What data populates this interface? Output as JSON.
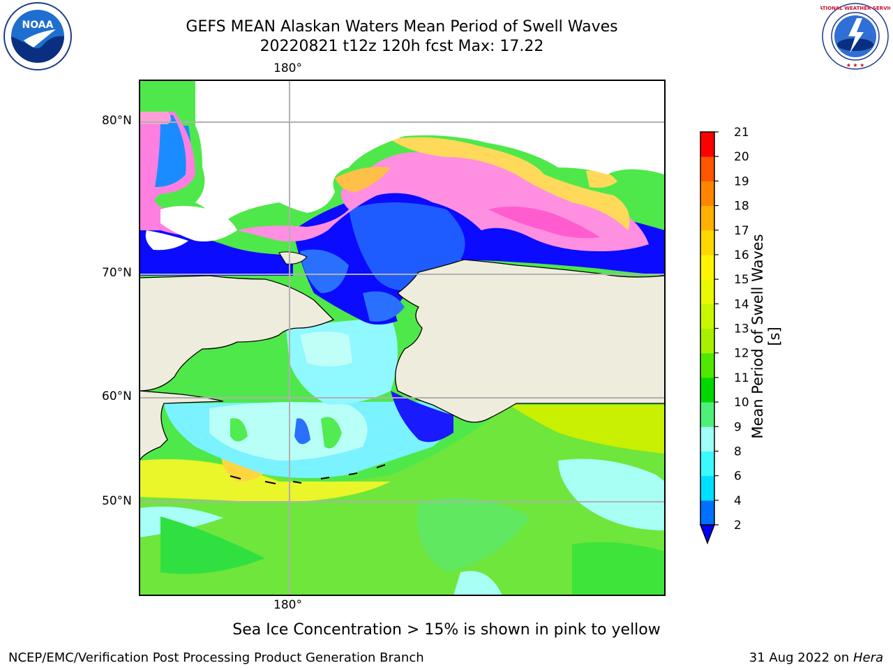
{
  "title": {
    "line1": "GEFS MEAN Alaskan Waters Mean Period of Swell Waves",
    "line2": "20220821 t12z 120h fcst   Max: 17.22"
  },
  "map": {
    "lat_labels": [
      "80°N",
      "70°N",
      "60°N",
      "50°N"
    ],
    "lon_label_top": "180°",
    "lon_label_bottom": "180°",
    "colors": {
      "land": "#eeecdc",
      "ice_mask": "#ffffff",
      "grid": "#b0b0b0"
    }
  },
  "colorbar": {
    "label": "Mean Period of Swell Waves [s]",
    "ticks": [
      "2",
      "4",
      "6",
      "8",
      "9",
      "10",
      "11",
      "12",
      "13",
      "14",
      "15",
      "16",
      "17",
      "18",
      "19",
      "20",
      "21"
    ],
    "colors": [
      "#0070ff",
      "#00dfff",
      "#3cf8ff",
      "#a0fff8",
      "#4ff07a",
      "#00d800",
      "#50e800",
      "#a8f000",
      "#c8f800",
      "#e8f800",
      "#fff400",
      "#ffd800",
      "#ffb000",
      "#ff8400",
      "#ff5400",
      "#ff2800",
      "#ff0000"
    ],
    "under_color": "#0000ff"
  },
  "footer": {
    "note": "Sea Ice Concentration > 15% is shown in pink to yellow",
    "credit_left": "NCEP/EMC/Verification Post Processing Product Generation Branch",
    "credit_right_date": "31 Aug 2022 on",
    "credit_right_host": "Hera"
  },
  "logos": {
    "noaa_text": "NOAA",
    "nws_text": "NATIONAL WEATHER SERVICE"
  }
}
